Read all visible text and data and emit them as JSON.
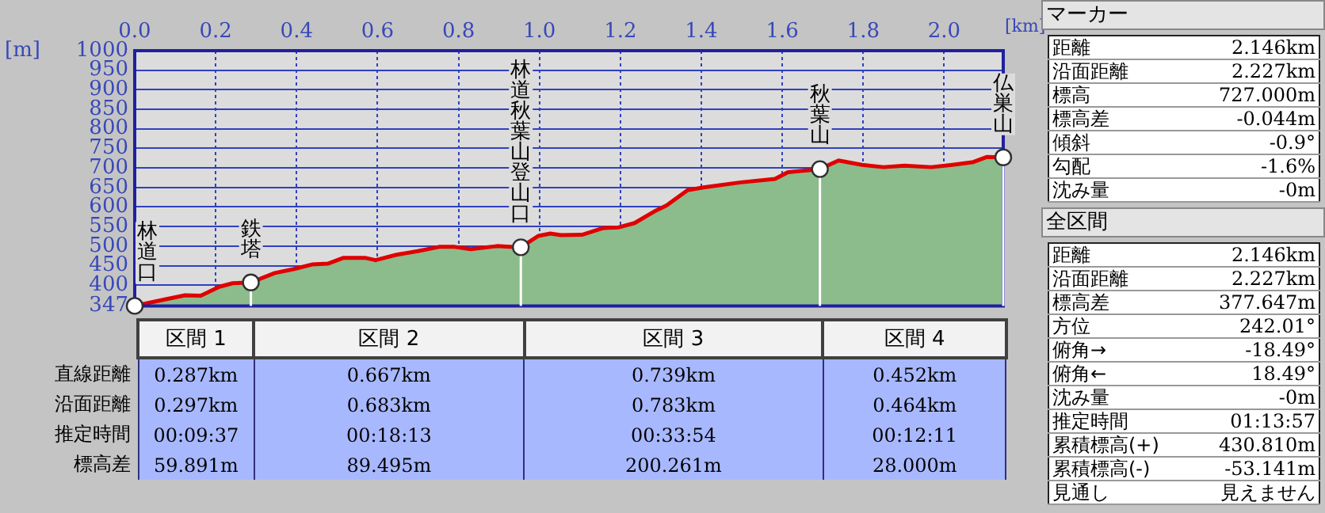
{
  "chart_data": [
    {
      "type": "area",
      "xlabel": "[km]",
      "ylabel": "[m]",
      "x": [
        0,
        0.072,
        0.124,
        0.163,
        0.209,
        0.242,
        0.287,
        0.346,
        0.392,
        0.438,
        0.477,
        0.516,
        0.569,
        0.595,
        0.647,
        0.699,
        0.752,
        0.791,
        0.83,
        0.895,
        0.928,
        0.954,
        0.997,
        1.027,
        1.053,
        1.105,
        1.157,
        1.196,
        1.235,
        1.288,
        1.314,
        1.366,
        1.405,
        1.497,
        1.582,
        1.614,
        1.693,
        1.739,
        1.797,
        1.85,
        1.902,
        1.968,
        2.02,
        2.072,
        2.105,
        2.146
      ],
      "series": [
        {
          "color": "#8cbc8c",
          "values": [
            347,
            363,
            374,
            373,
            396,
            405,
            407,
            431,
            441,
            453,
            455,
            470,
            470,
            464,
            478,
            487,
            498,
            498,
            492,
            500,
            498,
            497,
            526,
            532,
            528,
            529,
            546,
            548,
            559,
            591,
            604,
            643,
            650,
            663,
            672,
            689,
            697,
            719,
            708,
            702,
            706,
            702,
            708,
            715,
            728,
            727
          ]
        }
      ],
      "xlim": [
        0,
        2.146
      ],
      "xticks": [
        {
          "value": 0,
          "label": "0.0"
        },
        {
          "value": 0.2,
          "label": "0.2"
        },
        {
          "value": 0.4,
          "label": "0.4"
        },
        {
          "value": 0.6,
          "label": "0.6"
        },
        {
          "value": 0.8,
          "label": "0.8"
        },
        {
          "value": 1,
          "label": "1.0"
        },
        {
          "value": 1.2,
          "label": "1.2"
        },
        {
          "value": 1.4,
          "label": "1.4"
        },
        {
          "value": 1.6,
          "label": "1.6"
        },
        {
          "value": 1.8,
          "label": "1.8"
        },
        {
          "value": 2,
          "label": "2.0"
        }
      ],
      "ylim": [
        347,
        1000
      ],
      "yticks": [
        347,
        400,
        450,
        500,
        550,
        600,
        650,
        700,
        750,
        800,
        850,
        900,
        950,
        1000
      ],
      "grid": true,
      "legend": false,
      "marker": "none",
      "line_style": "solid",
      "annotations": [
        {
          "text": "林道口",
          "x": 0,
          "y": 347
        },
        {
          "text": "鉄塔",
          "x": 0.287,
          "y": 407
        },
        {
          "text": "林道秋葉山登山口",
          "x": 0.954,
          "y": 497
        },
        {
          "text": "秋葉山",
          "x": 1.693,
          "y": 697
        },
        {
          "text": "仏巣山",
          "x": 2.146,
          "y": 727
        }
      ]
    },
    {
      "type": "other",
      "categories": [
        "区間 1",
        "区間 2",
        "区間 3",
        "区間 4"
      ],
      "y_categories": [
        "直線距離",
        "沿面距離",
        "推定時間",
        "標高差"
      ],
      "cell_labels": [
        [
          "0.287km",
          "0.667km",
          "0.739km",
          "0.452km"
        ],
        [
          "0.297km",
          "0.683km",
          "0.783km",
          "0.464km"
        ],
        [
          "00:09:37",
          "00:18:13",
          "00:33:54",
          "00:12:11"
        ],
        [
          "59.891m",
          "89.495m",
          "200.261m",
          "28.000m"
        ]
      ]
    },
    {
      "type": "other",
      "title": "マーカー",
      "y_categories": [
        "距離",
        "沿面距離",
        "標高",
        "標高差",
        "傾斜",
        "勾配",
        "沈み量"
      ],
      "cell_labels": [
        [
          "2.146km"
        ],
        [
          "2.227km"
        ],
        [
          "727.000m"
        ],
        [
          "-0.044m"
        ],
        [
          "-0.9°"
        ],
        [
          "-1.6%"
        ],
        [
          "-0m"
        ]
      ]
    },
    {
      "type": "other",
      "title": "全区間",
      "y_categories": [
        "距離",
        "沿面距離",
        "標高差",
        "方位",
        "俯角→",
        "俯角←",
        "沈み量",
        "推定時間",
        "累積標高(+)",
        "累積標高(-)",
        "見通し"
      ],
      "cell_labels": [
        [
          "2.146km"
        ],
        [
          "2.227km"
        ],
        [
          "377.647m"
        ],
        [
          "242.01°"
        ],
        [
          "-18.49°"
        ],
        [
          "18.49°"
        ],
        [
          "-0m"
        ],
        [
          "01:13:57"
        ],
        [
          "430.810m"
        ],
        [
          "-53.141m"
        ],
        [
          "見えません"
        ]
      ]
    }
  ]
}
